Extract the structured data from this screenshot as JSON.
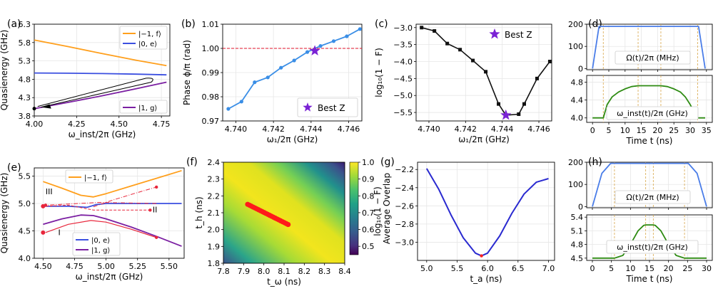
{
  "figure_title": "",
  "chart_data": [
    {
      "id": "a",
      "type": "line",
      "panel_label": "(a)",
      "xlabel": "ω_inst/2π (GHz)",
      "ylabel": "Quasienergy (GHz)",
      "xlim": [
        4.0,
        4.8
      ],
      "ylim": [
        3.8,
        6.3
      ],
      "xticks": [
        4.0,
        4.25,
        4.5,
        4.75
      ],
      "xtick_labels": [
        "4.00",
        "4.25",
        "4.50",
        "4.75"
      ],
      "yticks": [
        3.8,
        4.3,
        4.8,
        5.3,
        5.8,
        6.3
      ],
      "ytick_labels": [
        "3.8",
        "4.3",
        "4.8",
        "5.3",
        "5.8",
        "6.3"
      ],
      "series": [
        {
          "name": "|−1, f⟩",
          "color": "#ff9f1c",
          "x": [
            4.0,
            4.2,
            4.4,
            4.6,
            4.78
          ],
          "y": [
            5.87,
            5.69,
            5.5,
            5.32,
            5.17
          ]
        },
        {
          "name": "|0, e⟩",
          "color": "#3b4fe0",
          "x": [
            4.0,
            4.2,
            4.4,
            4.6,
            4.78
          ],
          "y": [
            4.97,
            4.965,
            4.955,
            4.94,
            4.92
          ]
        },
        {
          "name": "|1, g⟩",
          "color": "#7b1fa2",
          "x": [
            4.0,
            4.2,
            4.4,
            4.6,
            4.78
          ],
          "y": [
            4.0,
            4.17,
            4.35,
            4.54,
            4.72
          ]
        }
      ],
      "legend_top": [
        "|−1, f⟩",
        "|0, e⟩"
      ],
      "legend_bottom": [
        "|1, g⟩"
      ],
      "marker_point": [
        4.0,
        4.0
      ]
    },
    {
      "id": "b",
      "type": "line",
      "panel_label": "(b)",
      "xlabel": "ω₁/2π (GHz)",
      "ylabel": "Phase ϕ/π (rad)",
      "xlim": [
        4.7393,
        4.7467
      ],
      "ylim": [
        0.97,
        1.01
      ],
      "xticks": [
        4.74,
        4.742,
        4.744,
        4.746
      ],
      "xtick_labels": [
        "4.740",
        "4.742",
        "4.744",
        "4.746"
      ],
      "yticks": [
        0.97,
        0.98,
        0.99,
        1.0,
        1.01
      ],
      "ytick_labels": [
        "0.97",
        "0.98",
        "0.99",
        "1.00",
        "1.01"
      ],
      "series": [
        {
          "name": "phase",
          "color": "#3a8ee6",
          "x": [
            4.7396,
            4.7403,
            4.741,
            4.7417,
            4.7424,
            4.7431,
            4.7438,
            4.7445,
            4.7452,
            4.7459,
            4.7466
          ],
          "y": [
            0.975,
            0.978,
            0.986,
            0.988,
            0.992,
            0.995,
            0.9985,
            1.001,
            1.003,
            1.005,
            1.008
          ]
        }
      ],
      "reference_line": 1.0,
      "best_point": [
        4.7442,
        0.999
      ],
      "legend": "Best Z"
    },
    {
      "id": "c",
      "type": "line",
      "panel_label": "(c)",
      "xlabel": "ω₁/2π (GHz)",
      "ylabel": "log₁₀(1 − F)",
      "xlim": [
        4.7393,
        4.7467
      ],
      "ylim": [
        -5.75,
        -2.9
      ],
      "xticks": [
        4.74,
        4.742,
        4.744,
        4.746
      ],
      "xtick_labels": [
        "4.740",
        "4.742",
        "4.744",
        "4.746"
      ],
      "yticks": [
        -5.5,
        -5.0,
        -4.5,
        -4.0,
        -3.5,
        -3.0
      ],
      "ytick_labels": [
        "−5.5",
        "−5.0",
        "−4.5",
        "−4.0",
        "−3.5",
        "−3.0"
      ],
      "series": [
        {
          "name": "infidelity",
          "color": "#111111",
          "x": [
            4.7396,
            4.7403,
            4.741,
            4.7417,
            4.7424,
            4.7431,
            4.7438,
            4.7442,
            4.7449,
            4.7452,
            4.7459,
            4.7466
          ],
          "y": [
            -3.0,
            -3.1,
            -3.47,
            -3.65,
            -3.97,
            -4.3,
            -5.25,
            -5.58,
            -5.55,
            -5.25,
            -4.5,
            -4.0
          ]
        }
      ],
      "best_point": [
        4.7442,
        -5.58
      ],
      "legend": "Best Z"
    },
    {
      "id": "d_top",
      "type": "line",
      "panel_label": "(d)",
      "xlim": [
        -1.8,
        36.8
      ],
      "ylim": [
        -5,
        200
      ],
      "yticks": [
        0,
        100,
        200
      ],
      "ytick_labels": [
        "0",
        "100",
        "200"
      ],
      "xticks": [
        0,
        5,
        10,
        15,
        20,
        25,
        30,
        35
      ],
      "series": [
        {
          "name": "Ω(t)/2π (MHz)",
          "color": "#4a7de8",
          "x": [
            0,
            2,
            32.6,
            34.6
          ],
          "y": [
            0,
            190,
            190,
            0
          ]
        }
      ],
      "vlines": [
        3.3,
        14.0,
        21.0,
        32.3
      ],
      "label": "Ω(t)/2π (MHz)"
    },
    {
      "id": "d_bottom",
      "type": "line",
      "xlabel": "Time t (ns)",
      "xlim": [
        -1.8,
        36.8
      ],
      "ylim": [
        3.9,
        4.95
      ],
      "yticks": [
        4.0,
        4.4,
        4.8
      ],
      "ytick_labels": [
        "4.0",
        "4.4",
        "4.8"
      ],
      "xticks": [
        0,
        5,
        10,
        15,
        20,
        25,
        30,
        35
      ],
      "xtick_labels": [
        "0",
        "5",
        "10",
        "15",
        "20",
        "25",
        "30",
        "35"
      ],
      "series": [
        {
          "name": "ω_inst(t)/2π (GHz)",
          "color": "#2e8b12",
          "x": [
            0,
            3.3,
            4.5,
            6,
            8,
            10,
            12,
            14,
            21,
            23,
            25,
            27,
            28.5,
            30,
            31.5,
            32.3,
            34.6
          ],
          "y": [
            4.0,
            4.0,
            4.3,
            4.47,
            4.58,
            4.65,
            4.7,
            4.72,
            4.72,
            4.7,
            4.65,
            4.58,
            4.47,
            4.3,
            4.1,
            4.0,
            4.0
          ]
        }
      ],
      "vlines": [
        3.3,
        14.0,
        21.0,
        32.3
      ],
      "label": "ω_inst(t)/2π (GHz)"
    },
    {
      "id": "e",
      "type": "line",
      "panel_label": "(e)",
      "xlabel": "ω_inst/2π (GHz)",
      "ylabel": "Quasienergy (GHz)",
      "xlim": [
        4.43,
        5.62
      ],
      "ylim": [
        4.0,
        5.65
      ],
      "xticks": [
        4.5,
        4.75,
        5.0,
        5.25,
        5.5
      ],
      "xtick_labels": [
        "4.50",
        "4.75",
        "5.00",
        "5.25",
        "5.50"
      ],
      "yticks": [
        4.0,
        4.5,
        5.0,
        5.5
      ],
      "ytick_labels": [
        "4.0",
        "4.5",
        "5.0",
        "5.5"
      ],
      "series": [
        {
          "name": "|−1, f⟩",
          "color": "#ff9f1c",
          "x": [
            4.5,
            4.65,
            4.8,
            4.9,
            5.0,
            5.2,
            5.4,
            5.6
          ],
          "y": [
            5.4,
            5.28,
            5.15,
            5.12,
            5.18,
            5.32,
            5.46,
            5.6
          ]
        },
        {
          "name": "|0, e⟩",
          "color": "#3b4fe0",
          "x": [
            4.5,
            4.7,
            4.85,
            4.92,
            5.0,
            5.2,
            5.4,
            5.6
          ],
          "y": [
            4.95,
            4.95,
            4.93,
            4.98,
            5.0,
            5.0,
            5.0,
            5.0
          ]
        },
        {
          "name": "|1, g⟩",
          "color": "#7b1fa2",
          "x": [
            4.5,
            4.65,
            4.8,
            4.9,
            5.0,
            5.2,
            5.4,
            5.6
          ],
          "y": [
            4.62,
            4.72,
            4.79,
            4.78,
            4.72,
            4.57,
            4.4,
            4.22
          ]
        }
      ],
      "legend_top": [
        "|−1, f⟩"
      ],
      "legend_bottom": [
        "|0, e⟩",
        "|1, g⟩"
      ],
      "annotations": [
        "III",
        "II",
        "I"
      ]
    },
    {
      "id": "f",
      "type": "heatmap",
      "panel_label": "(f)",
      "xlabel": "t_ω (ns)",
      "ylabel": "t_h (ns)",
      "xlim": [
        7.8,
        8.4
      ],
      "ylim": [
        1.8,
        2.4
      ],
      "xticks": [
        7.8,
        7.9,
        8.0,
        8.1,
        8.2,
        8.3,
        8.4
      ],
      "xtick_labels": [
        "7.8",
        "7.9",
        "8.0",
        "8.1",
        "8.2",
        "8.3",
        "8.4"
      ],
      "yticks": [
        1.8,
        1.9,
        2.0,
        2.1,
        2.2,
        2.3,
        2.4
      ],
      "ytick_labels": [
        "1.8",
        "1.9",
        "2.0",
        "2.1",
        "2.2",
        "2.3",
        "2.4"
      ],
      "colorbar_label": "Average Overlap",
      "colorbar_range": [
        0.45,
        1.0
      ],
      "colorbar_ticks": [
        0.5,
        0.6,
        0.7,
        0.8,
        0.9,
        1.0
      ],
      "colorbar_tick_labels": [
        "0.5",
        "0.6",
        "0.7",
        "0.8",
        "0.9",
        "1.0"
      ],
      "optimal_segment": {
        "x": [
          7.92,
          8.12
        ],
        "y": [
          2.15,
          2.03
        ]
      }
    },
    {
      "id": "g",
      "type": "line",
      "panel_label": "(g)",
      "xlabel": "t_a (ns)",
      "ylabel": "log₁₀(1 − F)",
      "xlim": [
        4.85,
        7.1
      ],
      "ylim": [
        -3.2,
        -2.12
      ],
      "xticks": [
        5.0,
        5.5,
        6.0,
        6.5,
        7.0
      ],
      "xtick_labels": [
        "5.0",
        "5.5",
        "6.0",
        "6.5",
        "7.0"
      ],
      "yticks": [
        -3.0,
        -2.8,
        -2.6,
        -2.4,
        -2.2
      ],
      "ytick_labels": [
        "−3.0",
        "−2.8",
        "−2.6",
        "−2.4",
        "−2.2"
      ],
      "series": [
        {
          "name": "infidelity",
          "color": "#2a2ad0",
          "x": [
            5.0,
            5.2,
            5.4,
            5.6,
            5.8,
            5.9,
            6.0,
            6.2,
            6.4,
            6.6,
            6.8,
            7.0
          ],
          "y": [
            -2.19,
            -2.42,
            -2.7,
            -2.95,
            -3.12,
            -3.15,
            -3.12,
            -2.93,
            -2.68,
            -2.47,
            -2.34,
            -2.3
          ]
        }
      ],
      "min_point": [
        5.9,
        -3.15
      ]
    },
    {
      "id": "h_top",
      "type": "line",
      "panel_label": "(h)",
      "xlim": [
        -1.5,
        31.5
      ],
      "ylim": [
        -5,
        200
      ],
      "yticks": [
        0,
        100,
        200
      ],
      "ytick_labels": [
        "0",
        "100",
        "200"
      ],
      "xticks": [
        0,
        5,
        10,
        15,
        20,
        25,
        30
      ],
      "series": [
        {
          "name": "Ω(t)/2π (MHz)",
          "color": "#4a7de8",
          "x": [
            0,
            1,
            2.5,
            4.8,
            25.2,
            27.5,
            29,
            30
          ],
          "y": [
            0,
            60,
            150,
            195,
            195,
            150,
            60,
            0
          ]
        }
      ],
      "vlines": [
        5.8,
        14.0,
        16.0,
        24.2
      ],
      "label": "Ω(t)/2π (MHz)"
    },
    {
      "id": "h_bottom",
      "type": "line",
      "xlabel": "Time t (ns)",
      "xlim": [
        -1.5,
        31.5
      ],
      "ylim": [
        4.45,
        5.45
      ],
      "yticks": [
        4.5,
        4.8,
        5.1,
        5.4
      ],
      "ytick_labels": [
        "4.5",
        "4.8",
        "5.1",
        "5.4"
      ],
      "xticks": [
        0,
        5,
        10,
        15,
        20,
        25,
        30
      ],
      "xtick_labels": [
        "0",
        "5",
        "10",
        "15",
        "20",
        "25",
        "30"
      ],
      "series": [
        {
          "name": "ω_inst(t)/2π (GHz)",
          "color": "#2e8b12",
          "x": [
            0,
            5.8,
            8,
            10,
            12,
            13.5,
            14,
            16,
            16.5,
            18,
            20,
            22,
            24.2,
            30
          ],
          "y": [
            4.5,
            4.5,
            4.56,
            4.8,
            5.1,
            5.22,
            5.23,
            5.23,
            5.22,
            5.1,
            4.8,
            4.56,
            4.5,
            4.5
          ]
        }
      ],
      "vlines": [
        5.8,
        14.0,
        16.0,
        24.2
      ],
      "label": "ω_inst(t)/2π (GHz)"
    }
  ]
}
